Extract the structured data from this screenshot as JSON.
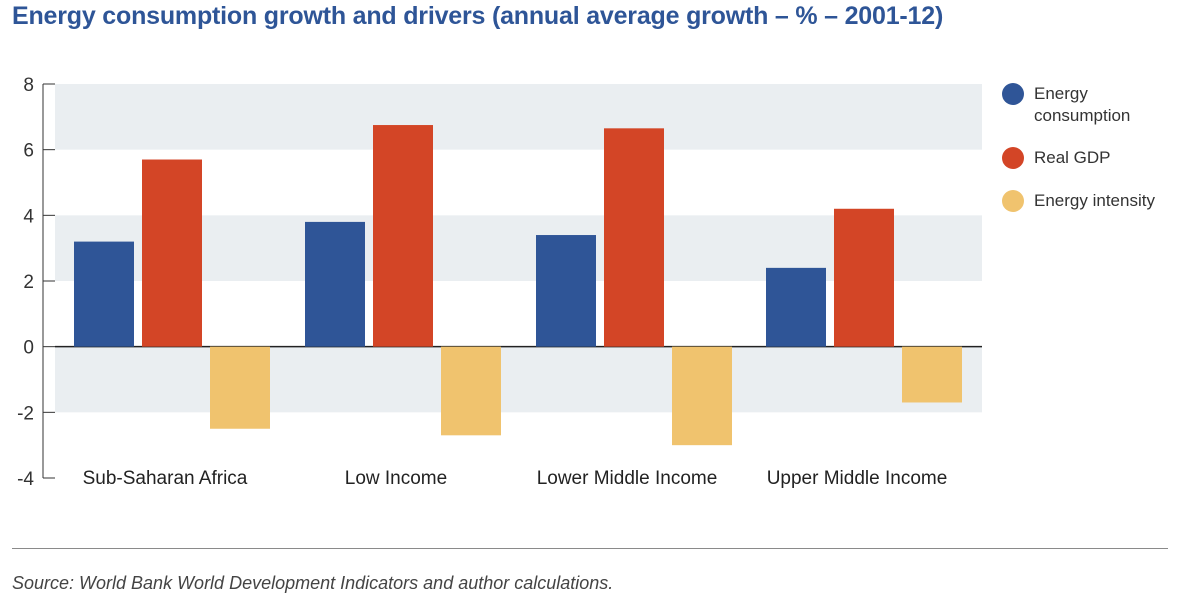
{
  "title": "Energy consumption growth and drivers (annual average growth – % – 2001-12)",
  "source": "Source: World Bank World Development Indicators and author calculations.",
  "colors": {
    "band": "#eaeef1",
    "axis": "#333333"
  },
  "chart_data": {
    "type": "bar",
    "title": "Energy consumption growth and drivers (annual average growth – % – 2001-12)",
    "xlabel": "",
    "ylabel": "",
    "categories": [
      "Sub-Saharan Africa",
      "Low Income",
      "Lower Middle Income",
      "Upper Middle Income"
    ],
    "series": [
      {
        "name": "Energy consumption",
        "color": "#2f5597",
        "values": [
          3.2,
          3.8,
          3.4,
          2.4
        ]
      },
      {
        "name": "Real GDP",
        "color": "#d34526",
        "values": [
          5.7,
          6.75,
          6.65,
          4.2
        ]
      },
      {
        "name": "Energy intensity",
        "color": "#f0c36e",
        "values": [
          -2.5,
          -2.7,
          -3.0,
          -1.7
        ]
      }
    ],
    "ylim": [
      -4,
      8
    ],
    "yticks": [
      "8",
      "6",
      "4",
      "2",
      "0",
      "-2",
      "-4"
    ],
    "grid": "alternating bands",
    "legend_position": "right"
  }
}
